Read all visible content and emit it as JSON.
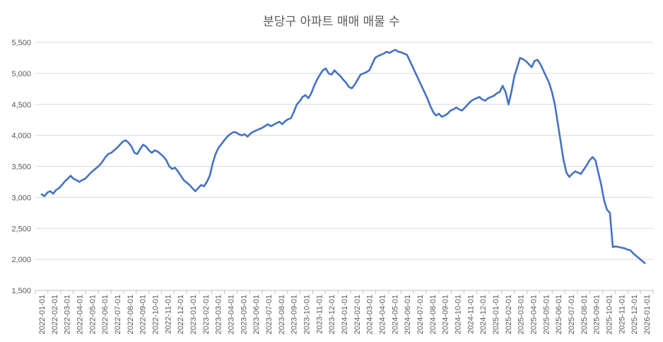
{
  "chart_data": {
    "type": "line",
    "title": "분당구 아파트 매매 매물 수",
    "xlabel": "",
    "ylabel": "",
    "ylim": [
      1500,
      5500
    ],
    "yticks": [
      1500,
      2000,
      2500,
      3000,
      3500,
      4000,
      4500,
      5000,
      5500
    ],
    "ytick_labels": [
      "1,500",
      "2,000",
      "2,500",
      "3,000",
      "3,500",
      "4,000",
      "4,500",
      "5,000",
      "5,500"
    ],
    "x_tick_labels": [
      "2022-01-01",
      "2022-02-01",
      "2022-03-01",
      "2022-04-01",
      "2022-05-01",
      "2022-06-01",
      "2022-07-01",
      "2022-08-01",
      "2022-09-01",
      "2022-10-01",
      "2022-11-01",
      "2022-12-01",
      "2023-01-01",
      "2023-02-01",
      "2023-03-01",
      "2023-04-01",
      "2023-05-01",
      "2023-06-01",
      "2023-07-01",
      "2023-08-01",
      "2023-09-01",
      "2023-10-01",
      "2023-11-01",
      "2023-12-01",
      "2024-01-01",
      "2024-02-01",
      "2024-03-01",
      "2024-04-01",
      "2024-05-01",
      "2024-06-01",
      "2024-07-01",
      "2024-08-01",
      "2024-09-01",
      "2024-10-01",
      "2024-11-01",
      "2024-12-01",
      "2025-01-01",
      "2025-02-01",
      "2025-03-01",
      "2025-04-01",
      "2025-05-01",
      "2025-06-01",
      "2025-07-01",
      "2025-08-01",
      "2025-09-01",
      "2025-10-01",
      "2025-11-01",
      "2025-12-01",
      "2026-01-01"
    ],
    "grid": true,
    "legend": "none",
    "series": [
      {
        "name": "",
        "color": "#4472c4",
        "points": [
          [
            "2022-01-01",
            3050
          ],
          [
            "2022-01-08",
            3020
          ],
          [
            "2022-01-15",
            3080
          ],
          [
            "2022-01-22",
            3100
          ],
          [
            "2022-01-29",
            3060
          ],
          [
            "2022-02-05",
            3120
          ],
          [
            "2022-02-12",
            3150
          ],
          [
            "2022-02-19",
            3200
          ],
          [
            "2022-02-26",
            3260
          ],
          [
            "2022-03-05",
            3300
          ],
          [
            "2022-03-12",
            3350
          ],
          [
            "2022-03-19",
            3300
          ],
          [
            "2022-03-26",
            3280
          ],
          [
            "2022-04-02",
            3250
          ],
          [
            "2022-04-09",
            3280
          ],
          [
            "2022-04-16",
            3300
          ],
          [
            "2022-04-23",
            3350
          ],
          [
            "2022-04-30",
            3400
          ],
          [
            "2022-05-07",
            3440
          ],
          [
            "2022-05-14",
            3480
          ],
          [
            "2022-05-21",
            3520
          ],
          [
            "2022-05-28",
            3580
          ],
          [
            "2022-06-04",
            3650
          ],
          [
            "2022-06-11",
            3700
          ],
          [
            "2022-06-18",
            3720
          ],
          [
            "2022-06-25",
            3760
          ],
          [
            "2022-07-02",
            3800
          ],
          [
            "2022-07-09",
            3850
          ],
          [
            "2022-07-16",
            3900
          ],
          [
            "2022-07-23",
            3920
          ],
          [
            "2022-07-30",
            3880
          ],
          [
            "2022-08-06",
            3820
          ],
          [
            "2022-08-13",
            3720
          ],
          [
            "2022-08-20",
            3700
          ],
          [
            "2022-08-27",
            3780
          ],
          [
            "2022-09-03",
            3850
          ],
          [
            "2022-09-10",
            3820
          ],
          [
            "2022-09-17",
            3760
          ],
          [
            "2022-09-24",
            3720
          ],
          [
            "2022-10-01",
            3760
          ],
          [
            "2022-10-08",
            3740
          ],
          [
            "2022-10-15",
            3700
          ],
          [
            "2022-10-22",
            3660
          ],
          [
            "2022-10-29",
            3600
          ],
          [
            "2022-11-05",
            3500
          ],
          [
            "2022-11-12",
            3460
          ],
          [
            "2022-11-19",
            3480
          ],
          [
            "2022-11-26",
            3420
          ],
          [
            "2022-12-03",
            3350
          ],
          [
            "2022-12-10",
            3280
          ],
          [
            "2022-12-17",
            3240
          ],
          [
            "2022-12-24",
            3200
          ],
          [
            "2022-12-31",
            3150
          ],
          [
            "2023-01-07",
            3100
          ],
          [
            "2023-01-14",
            3150
          ],
          [
            "2023-01-21",
            3200
          ],
          [
            "2023-01-28",
            3180
          ],
          [
            "2023-02-04",
            3250
          ],
          [
            "2023-02-11",
            3350
          ],
          [
            "2023-02-18",
            3550
          ],
          [
            "2023-02-25",
            3700
          ],
          [
            "2023-03-04",
            3800
          ],
          [
            "2023-03-11",
            3860
          ],
          [
            "2023-03-18",
            3920
          ],
          [
            "2023-03-25",
            3980
          ],
          [
            "2023-04-01",
            4020
          ],
          [
            "2023-04-08",
            4050
          ],
          [
            "2023-04-15",
            4050
          ],
          [
            "2023-04-22",
            4020
          ],
          [
            "2023-04-29",
            4000
          ],
          [
            "2023-05-06",
            4020
          ],
          [
            "2023-05-13",
            3980
          ],
          [
            "2023-05-20",
            4030
          ],
          [
            "2023-05-27",
            4060
          ],
          [
            "2023-06-03",
            4080
          ],
          [
            "2023-06-10",
            4100
          ],
          [
            "2023-06-17",
            4120
          ],
          [
            "2023-06-24",
            4150
          ],
          [
            "2023-07-01",
            4180
          ],
          [
            "2023-07-08",
            4150
          ],
          [
            "2023-07-15",
            4170
          ],
          [
            "2023-07-22",
            4200
          ],
          [
            "2023-07-29",
            4220
          ],
          [
            "2023-08-05",
            4180
          ],
          [
            "2023-08-12",
            4230
          ],
          [
            "2023-08-19",
            4260
          ],
          [
            "2023-08-26",
            4280
          ],
          [
            "2023-09-02",
            4380
          ],
          [
            "2023-09-09",
            4500
          ],
          [
            "2023-09-16",
            4550
          ],
          [
            "2023-09-23",
            4620
          ],
          [
            "2023-09-30",
            4650
          ],
          [
            "2023-10-07",
            4600
          ],
          [
            "2023-10-14",
            4680
          ],
          [
            "2023-10-21",
            4800
          ],
          [
            "2023-10-28",
            4900
          ],
          [
            "2023-11-04",
            4980
          ],
          [
            "2023-11-11",
            5050
          ],
          [
            "2023-11-18",
            5080
          ],
          [
            "2023-11-25",
            5000
          ],
          [
            "2023-12-02",
            4980
          ],
          [
            "2023-12-09",
            5050
          ],
          [
            "2023-12-16",
            5000
          ],
          [
            "2023-12-23",
            4960
          ],
          [
            "2023-12-30",
            4900
          ],
          [
            "2024-01-06",
            4850
          ],
          [
            "2024-01-13",
            4780
          ],
          [
            "2024-01-20",
            4760
          ],
          [
            "2024-01-27",
            4820
          ],
          [
            "2024-02-03",
            4900
          ],
          [
            "2024-02-10",
            4980
          ],
          [
            "2024-02-17",
            5000
          ],
          [
            "2024-02-24",
            5020
          ],
          [
            "2024-03-02",
            5050
          ],
          [
            "2024-03-09",
            5150
          ],
          [
            "2024-03-16",
            5250
          ],
          [
            "2024-03-23",
            5280
          ],
          [
            "2024-03-30",
            5300
          ],
          [
            "2024-04-06",
            5320
          ],
          [
            "2024-04-13",
            5350
          ],
          [
            "2024-04-20",
            5330
          ],
          [
            "2024-04-27",
            5360
          ],
          [
            "2024-05-04",
            5380
          ],
          [
            "2024-05-11",
            5350
          ],
          [
            "2024-05-18",
            5340
          ],
          [
            "2024-05-25",
            5320
          ],
          [
            "2024-06-01",
            5300
          ],
          [
            "2024-06-08",
            5200
          ],
          [
            "2024-06-15",
            5100
          ],
          [
            "2024-06-22",
            5000
          ],
          [
            "2024-06-29",
            4900
          ],
          [
            "2024-07-06",
            4800
          ],
          [
            "2024-07-13",
            4700
          ],
          [
            "2024-07-20",
            4600
          ],
          [
            "2024-07-27",
            4480
          ],
          [
            "2024-08-03",
            4380
          ],
          [
            "2024-08-10",
            4320
          ],
          [
            "2024-08-17",
            4350
          ],
          [
            "2024-08-24",
            4300
          ],
          [
            "2024-08-31",
            4320
          ],
          [
            "2024-09-07",
            4350
          ],
          [
            "2024-09-14",
            4400
          ],
          [
            "2024-09-21",
            4420
          ],
          [
            "2024-09-28",
            4450
          ],
          [
            "2024-10-05",
            4420
          ],
          [
            "2024-10-12",
            4400
          ],
          [
            "2024-10-19",
            4450
          ],
          [
            "2024-10-26",
            4500
          ],
          [
            "2024-11-02",
            4550
          ],
          [
            "2024-11-09",
            4580
          ],
          [
            "2024-11-16",
            4600
          ],
          [
            "2024-11-23",
            4620
          ],
          [
            "2024-11-30",
            4580
          ],
          [
            "2024-12-07",
            4560
          ],
          [
            "2024-12-14",
            4600
          ],
          [
            "2024-12-21",
            4620
          ],
          [
            "2024-12-28",
            4640
          ],
          [
            "2025-01-04",
            4680
          ],
          [
            "2025-01-11",
            4700
          ],
          [
            "2025-01-18",
            4800
          ],
          [
            "2025-01-25",
            4700
          ],
          [
            "2025-02-01",
            4500
          ],
          [
            "2025-02-08",
            4700
          ],
          [
            "2025-02-15",
            4950
          ],
          [
            "2025-02-22",
            5100
          ],
          [
            "2025-03-01",
            5250
          ],
          [
            "2025-03-08",
            5230
          ],
          [
            "2025-03-15",
            5200
          ],
          [
            "2025-03-22",
            5150
          ],
          [
            "2025-03-29",
            5100
          ],
          [
            "2025-04-05",
            5200
          ],
          [
            "2025-04-12",
            5220
          ],
          [
            "2025-04-19",
            5150
          ],
          [
            "2025-04-26",
            5050
          ],
          [
            "2025-05-03",
            4950
          ],
          [
            "2025-05-10",
            4850
          ],
          [
            "2025-05-17",
            4700
          ],
          [
            "2025-05-24",
            4500
          ],
          [
            "2025-05-31",
            4200
          ],
          [
            "2025-06-07",
            3900
          ],
          [
            "2025-06-14",
            3600
          ],
          [
            "2025-06-21",
            3400
          ],
          [
            "2025-06-28",
            3330
          ],
          [
            "2025-07-05",
            3380
          ],
          [
            "2025-07-12",
            3420
          ],
          [
            "2025-07-19",
            3400
          ],
          [
            "2025-07-26",
            3380
          ],
          [
            "2025-08-02",
            3450
          ],
          [
            "2025-08-09",
            3520
          ],
          [
            "2025-08-16",
            3600
          ],
          [
            "2025-08-23",
            3650
          ],
          [
            "2025-08-30",
            3600
          ],
          [
            "2025-09-06",
            3400
          ],
          [
            "2025-09-13",
            3200
          ],
          [
            "2025-09-20",
            2950
          ],
          [
            "2025-09-27",
            2800
          ],
          [
            "2025-10-04",
            2750
          ],
          [
            "2025-10-11",
            2200
          ],
          [
            "2025-10-18",
            2210
          ],
          [
            "2025-10-25",
            2200
          ],
          [
            "2025-11-01",
            2190
          ],
          [
            "2025-11-08",
            2180
          ],
          [
            "2025-11-15",
            2160
          ],
          [
            "2025-11-22",
            2150
          ],
          [
            "2025-11-29",
            2100
          ],
          [
            "2025-12-06",
            2060
          ],
          [
            "2025-12-13",
            2020
          ],
          [
            "2025-12-20",
            1980
          ],
          [
            "2025-12-27",
            1940
          ]
        ]
      }
    ]
  }
}
